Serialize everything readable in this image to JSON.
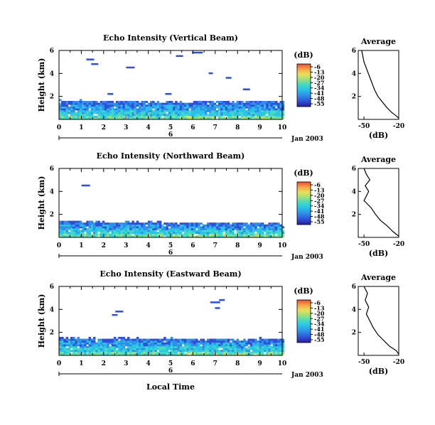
{
  "colors": {
    "scale": [
      "#2a1f8f",
      "#2e4fd8",
      "#2f8ee8",
      "#29c3e8",
      "#44dcc0",
      "#9de07a",
      "#e8e05a",
      "#f5a445",
      "#ec4a2e"
    ],
    "line": "#000000"
  },
  "colorbar": {
    "unit_label": "(dB)",
    "ticks": [
      "-6",
      "-13",
      "-20",
      "-27",
      "-34",
      "-41",
      "-48",
      "-55"
    ]
  },
  "time_axis": {
    "ticks": [
      "0",
      "1",
      "2",
      "3",
      "4",
      "5",
      "6",
      "7",
      "8",
      "9",
      "10"
    ],
    "date_label": "Jan 2003",
    "day_label": "6",
    "xlabel": "Local Time"
  },
  "height_axis": {
    "ylabel": "Height (km)",
    "ticks": [
      "6",
      "4",
      "2"
    ]
  },
  "profile_axis": {
    "title": "Average",
    "xlabel": "(dB)",
    "xticks": [
      "-50",
      "-20"
    ],
    "yticks": [
      "6",
      "4",
      "2"
    ]
  },
  "chart_data": [
    {
      "type": "heatmap",
      "title": "Echo Intensity (Vertical Beam)",
      "xlabel": "",
      "ylabel": "Height (km)",
      "x_range": [
        0,
        10
      ],
      "y_range": [
        0,
        6
      ],
      "units": "dB",
      "value_range": [
        -55,
        -6
      ],
      "cloud_top_km": [
        1.55,
        1.6,
        1.5,
        1.55,
        1.45,
        1.5,
        1.4,
        1.5,
        1.45,
        1.55,
        1.5
      ],
      "sparse_echoes": [
        {
          "time": 1.4,
          "height_km": 5.2
        },
        {
          "time": 1.6,
          "height_km": 4.8
        },
        {
          "time": 3.2,
          "height_km": 4.5
        },
        {
          "time": 5.4,
          "height_km": 5.5
        },
        {
          "time": 6.2,
          "height_km": 5.8
        },
        {
          "time": 6.8,
          "height_km": 4.0
        },
        {
          "time": 7.6,
          "height_km": 3.6
        },
        {
          "time": 8.4,
          "height_km": 2.6
        },
        {
          "time": 2.3,
          "height_km": 2.2
        },
        {
          "time": 4.9,
          "height_km": 2.2
        }
      ],
      "profile": {
        "title": "Average",
        "x": [
          -52,
          -50,
          -47,
          -44,
          -41,
          -38,
          -34,
          -30,
          -26,
          -22,
          -20
        ],
        "y": [
          6.0,
          5.0,
          4.2,
          3.4,
          2.6,
          2.0,
          1.5,
          1.0,
          0.6,
          0.3,
          0.1
        ]
      }
    },
    {
      "type": "heatmap",
      "title": "Echo Intensity (Northward Beam)",
      "xlabel": "",
      "ylabel": "Height (km)",
      "x_range": [
        0,
        10
      ],
      "y_range": [
        0,
        6
      ],
      "units": "dB",
      "value_range": [
        -55,
        -6
      ],
      "cloud_top_km": [
        1.35,
        1.3,
        1.3,
        1.25,
        1.3,
        1.2,
        1.15,
        1.2,
        1.15,
        1.2,
        1.15
      ],
      "sparse_echoes": [
        {
          "time": 1.2,
          "height_km": 4.5
        }
      ],
      "profile": {
        "title": "Average",
        "x": [
          -50,
          -48,
          -45,
          -49,
          -46,
          -50,
          -44,
          -40,
          -36,
          -30,
          -25,
          -20
        ],
        "y": [
          6.0,
          5.5,
          5.0,
          4.5,
          4.0,
          3.2,
          2.6,
          2.0,
          1.5,
          1.0,
          0.5,
          0.1
        ]
      }
    },
    {
      "type": "heatmap",
      "title": "Echo Intensity (Eastward Beam)",
      "xlabel": "Local Time",
      "ylabel": "Height (km)",
      "x_range": [
        0,
        10
      ],
      "y_range": [
        0,
        6
      ],
      "units": "dB",
      "value_range": [
        -55,
        -6
      ],
      "cloud_top_km": [
        1.5,
        1.45,
        1.4,
        1.45,
        1.35,
        1.4,
        1.3,
        1.35,
        1.3,
        1.4,
        1.35
      ],
      "sparse_echoes": [
        {
          "time": 2.7,
          "height_km": 3.8
        },
        {
          "time": 2.5,
          "height_km": 3.5
        },
        {
          "time": 7.0,
          "height_km": 4.6
        },
        {
          "time": 7.3,
          "height_km": 4.8
        },
        {
          "time": 7.1,
          "height_km": 4.1
        }
      ],
      "profile": {
        "title": "Average",
        "x": [
          -50,
          -47,
          -49,
          -46,
          -48,
          -45,
          -42,
          -38,
          -33,
          -28,
          -22,
          -20
        ],
        "y": [
          6.0,
          5.4,
          4.8,
          4.2,
          3.6,
          3.0,
          2.4,
          1.8,
          1.3,
          0.8,
          0.4,
          0.1
        ]
      }
    }
  ]
}
